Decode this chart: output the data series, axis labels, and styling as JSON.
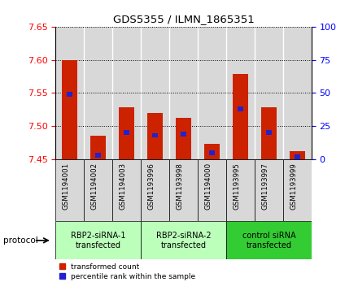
{
  "title": "GDS5355 / ILMN_1865351",
  "samples": [
    "GSM1194001",
    "GSM1194002",
    "GSM1194003",
    "GSM1193996",
    "GSM1193998",
    "GSM1194000",
    "GSM1193995",
    "GSM1193997",
    "GSM1193999"
  ],
  "transformed_counts": [
    7.6,
    7.485,
    7.528,
    7.52,
    7.513,
    7.473,
    7.578,
    7.528,
    7.462
  ],
  "percentile_ranks": [
    49,
    3,
    20,
    18,
    19,
    5,
    38,
    20,
    2
  ],
  "ylim": [
    7.45,
    7.65
  ],
  "yticks": [
    7.45,
    7.5,
    7.55,
    7.6,
    7.65
  ],
  "right_ylim": [
    0,
    100
  ],
  "right_yticks": [
    0,
    25,
    50,
    75,
    100
  ],
  "bar_color": "#cc2200",
  "percentile_color": "#2222cc",
  "groups": [
    {
      "label": "RBP2-siRNA-1\ntransfected",
      "start": 0,
      "end": 3,
      "color": "#bbffbb"
    },
    {
      "label": "RBP2-siRNA-2\ntransfected",
      "start": 3,
      "end": 6,
      "color": "#bbffbb"
    },
    {
      "label": "control siRNA\ntransfected",
      "start": 6,
      "end": 9,
      "color": "#33cc33"
    }
  ],
  "protocol_label": "protocol",
  "grid_linestyle": "dotted",
  "bar_width": 0.55,
  "sample_box_color": "#d8d8d8",
  "white": "#ffffff"
}
